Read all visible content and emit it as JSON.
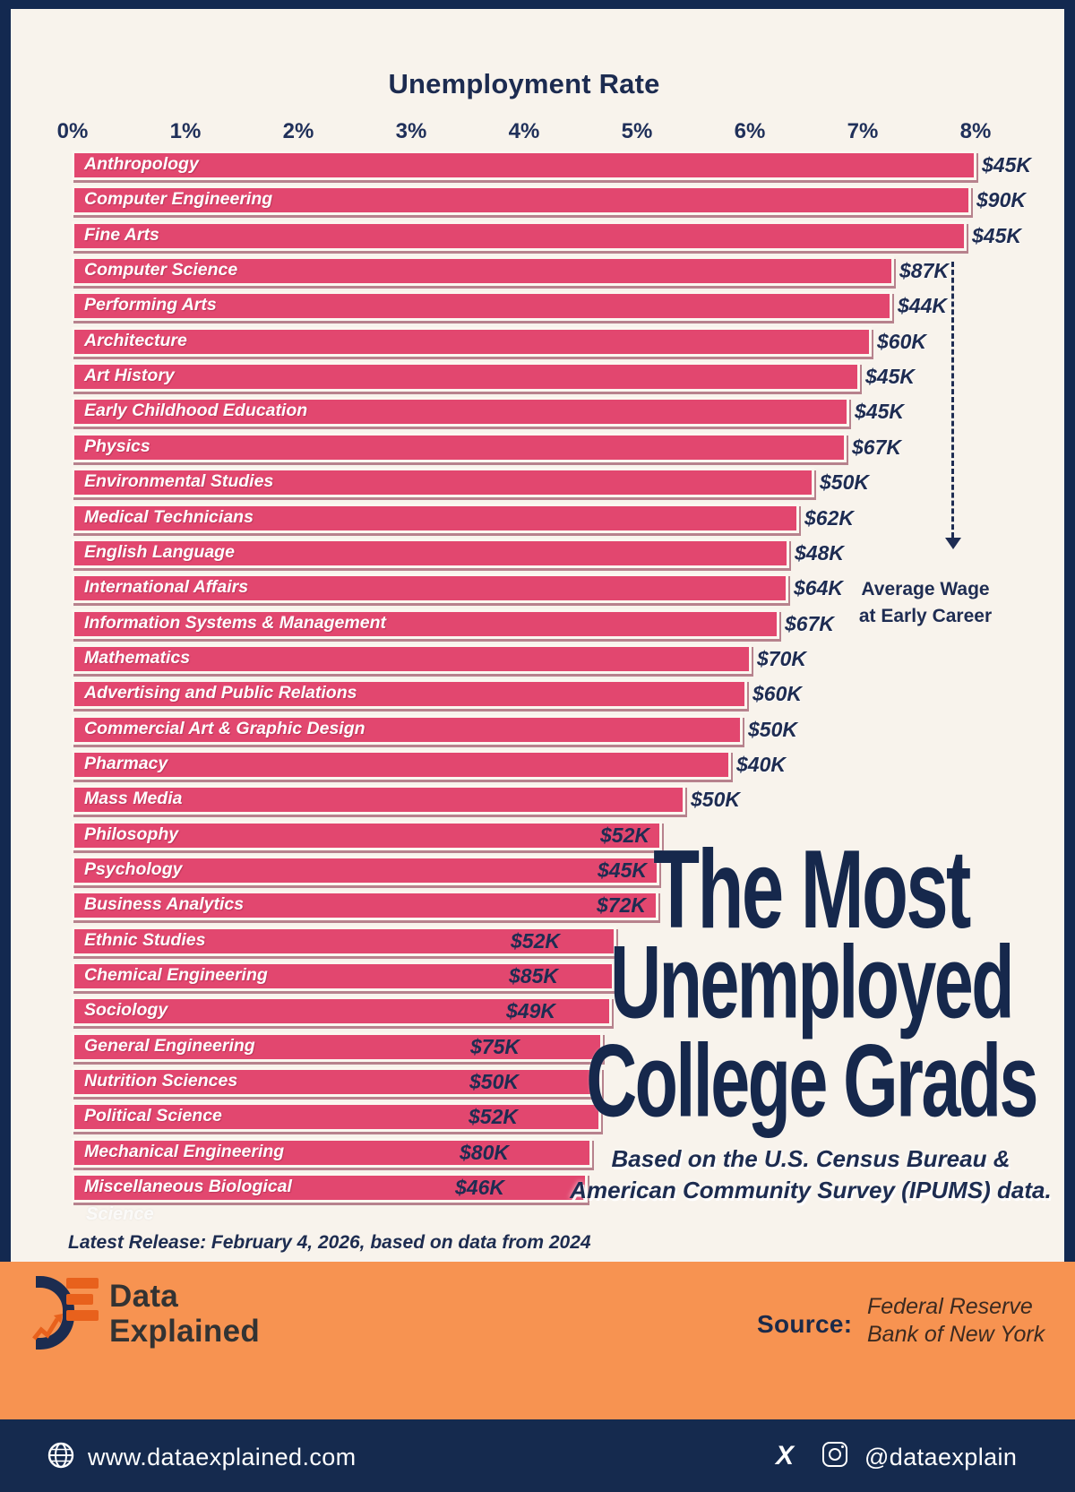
{
  "chart_data": {
    "type": "bar",
    "orientation": "horizontal",
    "title": "Unemployment Rate",
    "xlabel": "Unemployment Rate (%)",
    "xlim": [
      0,
      8
    ],
    "tick_labels": [
      "0%",
      "1%",
      "2%",
      "3%",
      "4%",
      "5%",
      "6%",
      "7%",
      "8%"
    ],
    "grid": false,
    "bar_color": "#e2476f",
    "categories": [
      "Anthropology",
      "Computer Engineering",
      "Fine Arts",
      "Computer Science",
      "Performing Arts",
      "Architecture",
      "Art History",
      "Early Childhood Education",
      "Physics",
      "Environmental Studies",
      "Medical Technicians",
      "English Language",
      "International Affairs",
      "Information Systems & Management",
      "Mathematics",
      "Advertising and Public Relations",
      "Commercial Art & Graphic Design",
      "Pharmacy",
      "Mass Media",
      "Philosophy",
      "Psychology",
      "Business Analytics",
      "Ethnic Studies",
      "Chemical Engineering",
      "Sociology",
      "General Engineering",
      "Nutrition Sciences",
      "Political Science",
      "Mechanical Engineering",
      "Miscellaneous Biological"
    ],
    "last_category_overflow": "Science",
    "series": [
      {
        "name": "Unemployment Rate (%)",
        "values": [
          7.97,
          7.92,
          7.88,
          7.24,
          7.22,
          7.04,
          6.94,
          6.84,
          6.82,
          6.53,
          6.4,
          6.31,
          6.3,
          6.22,
          5.98,
          5.94,
          5.9,
          5.79,
          5.39,
          5.18,
          5.16,
          5.15,
          4.78,
          4.76,
          4.74,
          4.66,
          4.65,
          4.64,
          4.56,
          4.52
        ]
      },
      {
        "name": "Average Wage at Early Career",
        "values": [
          "$45K",
          "$90K",
          "$45K",
          "$87K",
          "$44K",
          "$60K",
          "$45K",
          "$45K",
          "$67K",
          "$50K",
          "$62K",
          "$48K",
          "$64K",
          "$67K",
          "$70K",
          "$60K",
          "$50K",
          "$40K",
          "$50K",
          "$52K",
          "$45K",
          "$72K",
          "$52K",
          "$85K",
          "$49K",
          "$75K",
          "$50K",
          "$52K",
          "$80K",
          "$46K"
        ]
      }
    ]
  },
  "axis": {
    "title": "Unemployment Rate"
  },
  "annotation": {
    "wage_note_line1": "Average Wage",
    "wage_note_line2": "at Early Career"
  },
  "title_block": {
    "line1": "The Most",
    "line2": "Unemployed",
    "line3": "College Grads",
    "subtitle_line1": "Based on the U.S. Census Bureau &",
    "subtitle_line2": "American Community Survey (IPUMS) data."
  },
  "footnote": "Latest Release: February 4, 2026, based on data from 2024",
  "footer": {
    "brand_line1": "Data",
    "brand_line2": "Explained",
    "source_label": "Source:",
    "source_line1": "Federal Reserve",
    "source_line2": "Bank of New York",
    "website": "www.dataexplained.com",
    "social_handle": "@dataexplain",
    "x_glyph": "X"
  },
  "colors": {
    "background_cream": "#f8f3ec",
    "border_navy": "#132950",
    "bar_pink": "#e2476f",
    "text_navy": "#1e2c52",
    "title_navy": "#16284c",
    "footer_orange": "#f79351",
    "footer_navy": "#152a4e",
    "logo_orange": "#e8611c"
  }
}
